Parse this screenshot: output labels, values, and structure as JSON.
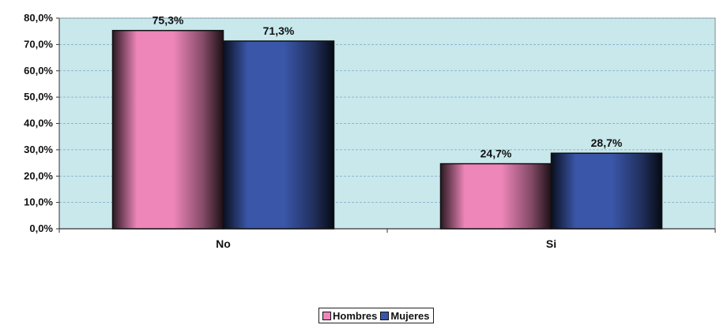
{
  "chart_data": {
    "type": "bar",
    "categories": [
      "No",
      "Si"
    ],
    "series": [
      {
        "name": "Hombres",
        "values": [
          75.3,
          24.7
        ],
        "labels": [
          "75,3%",
          "24,7%"
        ],
        "color": "#ee86ba"
      },
      {
        "name": "Mujeres",
        "values": [
          71.3,
          28.7
        ],
        "labels": [
          "71,3%",
          "28,7%"
        ],
        "color": "#3a56a8"
      }
    ],
    "ylim": [
      0,
      80
    ],
    "yticks": [
      0,
      10,
      20,
      30,
      40,
      50,
      60,
      70,
      80
    ],
    "ytick_labels": [
      "0,0%",
      "10,0%",
      "20,0%",
      "30,0%",
      "40,0%",
      "50,0%",
      "60,0%",
      "70,0%",
      "80,0%"
    ],
    "title": "",
    "xlabel": "",
    "ylabel": "",
    "grid": true,
    "legend_position": "bottom",
    "plot_background": "#c8e8ec"
  }
}
